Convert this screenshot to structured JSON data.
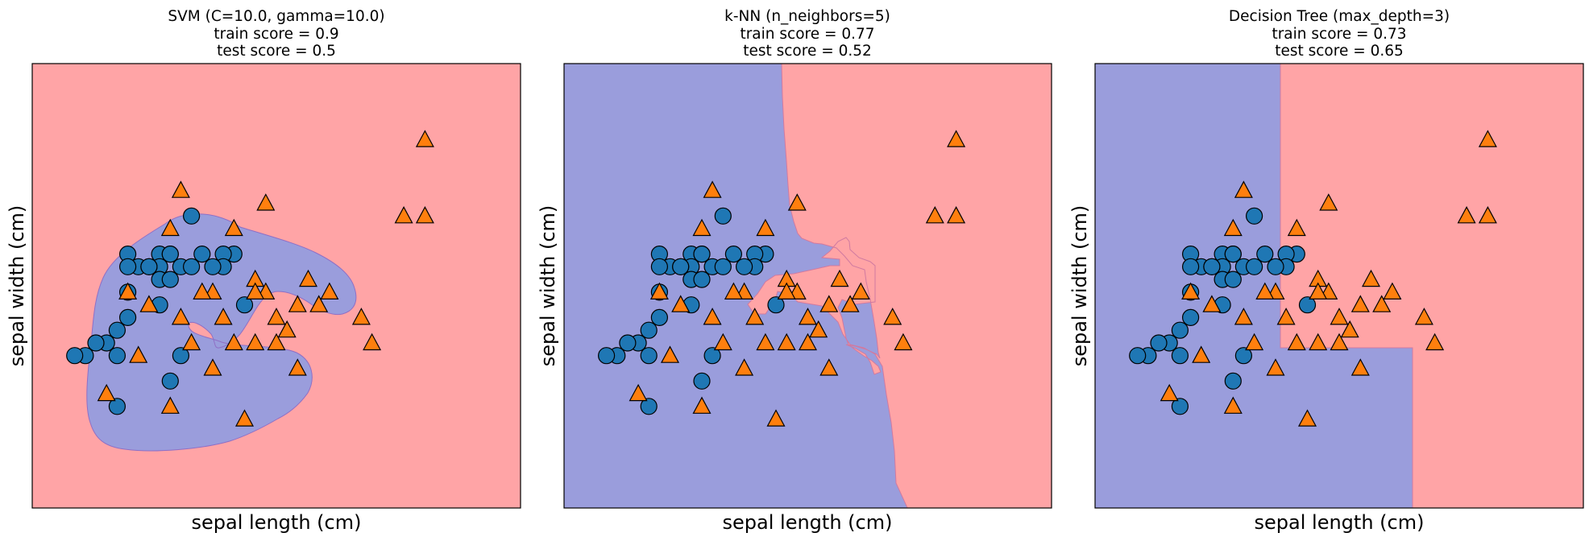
{
  "chart_data": [
    {
      "type": "scatter",
      "title": [
        "SVM (C=10.0, gamma=10.0)",
        "train score = 0.9",
        "test score = 0.5"
      ],
      "xlabel": "sepal length (cm)",
      "ylabel": "sepal width (cm)",
      "xlim": [
        4.2,
        8.8
      ],
      "ylim": [
        1.5,
        5.0
      ],
      "ticks": "hidden",
      "legend": "none",
      "regions": {
        "class0_color": "#9a9ddc",
        "class1_color": "#ffa4a6",
        "boundary": "class-0 (blue) blob around x 4.7–6.1, y 2.3–3.9 with a class-1 notch near x 5.5, y 3.0; rest class 1"
      },
      "series": [
        {
          "marker": "circle",
          "color": "#1f77b4",
          "x": [
            5.1,
            4.9,
            4.7,
            5.4,
            5.0,
            4.6,
            5.0,
            5.2,
            5.5,
            5.6,
            5.7,
            5.4,
            5.4,
            5.1,
            5.3,
            5.7,
            5.3,
            6.1,
            6.0,
            5.5,
            6.0,
            5.9,
            6.2,
            5.4,
            5.5,
            5.6,
            5.1,
            5.5,
            4.8,
            5.8,
            5.1,
            5.0
          ],
          "y": [
            3.5,
            2.8,
            2.7,
            3.5,
            2.9,
            2.7,
            2.3,
            3.4,
            3.5,
            3.4,
            3.8,
            3.4,
            3.3,
            3.4,
            3.4,
            3.4,
            3.4,
            3.5,
            3.5,
            2.5,
            3.4,
            3.4,
            3.1,
            3.1,
            3.3,
            2.7,
            3.2,
            3.5,
            2.8,
            3.5,
            3.0,
            2.7
          ]
        },
        {
          "marker": "triangle",
          "color": "#ff7f0e",
          "x": [
            7.0,
            6.4,
            6.9,
            5.5,
            6.5,
            5.7,
            6.3,
            4.9,
            6.6,
            5.2,
            6.7,
            5.6,
            6.2,
            5.9,
            6.1,
            7.4,
            7.9,
            6.3,
            6.4,
            6.0,
            6.8,
            5.8,
            7.7,
            6.3,
            5.6,
            7.9,
            6.7,
            6.5,
            5.9,
            7.3,
            6.1,
            5.5,
            5.1,
            5.3
          ],
          "y": [
            3.2,
            3.2,
            3.1,
            2.3,
            2.8,
            2.8,
            3.3,
            2.4,
            2.9,
            2.7,
            3.1,
            3.0,
            2.2,
            3.2,
            2.8,
            2.8,
            3.8,
            2.8,
            3.9,
            3.0,
            3.3,
            3.2,
            3.8,
            3.2,
            4.0,
            4.4,
            2.6,
            3.0,
            2.6,
            3.0,
            3.7,
            3.7,
            3.2,
            3.1
          ]
        }
      ]
    },
    {
      "type": "scatter",
      "title": [
        "k-NN (n_neighbors=5)",
        "train score = 0.77",
        "test score = 0.52"
      ],
      "xlabel": "sepal length (cm)",
      "ylabel": "sepal width (cm)",
      "xlim": [
        4.2,
        8.8
      ],
      "ylim": [
        1.5,
        5.0
      ],
      "ticks": "hidden",
      "legend": "none",
      "regions": {
        "class0_color": "#9a9ddc",
        "class1_color": "#ffa4a6",
        "boundary": "class 0 (blue) on the left with a jagged boundary near x 5.6–7.4; class 1 on the right"
      },
      "series": [
        {
          "marker": "circle",
          "color": "#1f77b4",
          "x": [
            5.1,
            4.9,
            4.7,
            5.4,
            5.0,
            4.6,
            5.0,
            5.2,
            5.5,
            5.6,
            5.7,
            5.4,
            5.4,
            5.1,
            5.3,
            5.7,
            5.3,
            6.1,
            6.0,
            5.5,
            6.0,
            5.9,
            6.2,
            5.4,
            5.5,
            5.6,
            5.1,
            5.5,
            4.8,
            5.8,
            5.1,
            5.0
          ],
          "y": [
            3.5,
            2.8,
            2.7,
            3.5,
            2.9,
            2.7,
            2.3,
            3.4,
            3.5,
            3.4,
            3.8,
            3.4,
            3.3,
            3.4,
            3.4,
            3.4,
            3.4,
            3.5,
            3.5,
            2.5,
            3.4,
            3.4,
            3.1,
            3.1,
            3.3,
            2.7,
            3.2,
            3.5,
            2.8,
            3.5,
            3.0,
            2.7
          ]
        },
        {
          "marker": "triangle",
          "color": "#ff7f0e",
          "x": [
            7.0,
            6.4,
            6.9,
            5.5,
            6.5,
            5.7,
            6.3,
            4.9,
            6.6,
            5.2,
            6.7,
            5.6,
            6.2,
            5.9,
            6.1,
            7.4,
            7.9,
            6.3,
            6.4,
            6.0,
            6.8,
            5.8,
            7.7,
            6.3,
            5.6,
            7.9,
            6.7,
            6.5,
            5.9,
            7.3,
            6.1,
            5.5,
            5.1,
            5.3
          ],
          "y": [
            3.2,
            3.2,
            3.1,
            2.3,
            2.8,
            2.8,
            3.3,
            2.4,
            2.9,
            2.7,
            3.1,
            3.0,
            2.2,
            3.2,
            2.8,
            2.8,
            3.8,
            2.8,
            3.9,
            3.0,
            3.3,
            3.2,
            3.8,
            3.2,
            4.0,
            4.4,
            2.6,
            3.0,
            2.6,
            3.0,
            3.7,
            3.7,
            3.2,
            3.1
          ]
        }
      ]
    },
    {
      "type": "scatter",
      "title": [
        "Decision Tree (max_depth=3)",
        "train score = 0.73",
        "test score = 0.65"
      ],
      "xlabel": "sepal length (cm)",
      "ylabel": "sepal width (cm)",
      "xlim": [
        4.2,
        8.8
      ],
      "ylim": [
        1.5,
        5.0
      ],
      "ticks": "hidden",
      "legend": "none",
      "regions": {
        "class0_color": "#9a9ddc",
        "class1_color": "#ffa4a6",
        "boundary": "class 0 for x < 5.95; class 0 also for 5.95 ≤ x < 7.2 when y < 2.95; otherwise class 1"
      },
      "series": [
        {
          "marker": "circle",
          "color": "#1f77b4",
          "x": [
            5.1,
            4.9,
            4.7,
            5.4,
            5.0,
            4.6,
            5.0,
            5.2,
            5.5,
            5.6,
            5.7,
            5.4,
            5.4,
            5.1,
            5.3,
            5.7,
            5.3,
            6.1,
            6.0,
            5.5,
            6.0,
            5.9,
            6.2,
            5.4,
            5.5,
            5.6,
            5.1,
            5.5,
            4.8,
            5.8,
            5.1,
            5.0
          ],
          "y": [
            3.5,
            2.8,
            2.7,
            3.5,
            2.9,
            2.7,
            2.3,
            3.4,
            3.5,
            3.4,
            3.8,
            3.4,
            3.3,
            3.4,
            3.4,
            3.4,
            3.4,
            3.5,
            3.5,
            2.5,
            3.4,
            3.4,
            3.1,
            3.1,
            3.3,
            2.7,
            3.2,
            3.5,
            2.8,
            3.5,
            3.0,
            2.7
          ]
        },
        {
          "marker": "triangle",
          "color": "#ff7f0e",
          "x": [
            7.0,
            6.4,
            6.9,
            5.5,
            6.5,
            5.7,
            6.3,
            4.9,
            6.6,
            5.2,
            6.7,
            5.6,
            6.2,
            5.9,
            6.1,
            7.4,
            7.9,
            6.3,
            6.4,
            6.0,
            6.8,
            5.8,
            7.7,
            6.3,
            5.6,
            7.9,
            6.7,
            6.5,
            5.9,
            7.3,
            6.1,
            5.5,
            5.1,
            5.3
          ],
          "y": [
            3.2,
            3.2,
            3.1,
            2.3,
            2.8,
            2.8,
            3.3,
            2.4,
            2.9,
            2.7,
            3.1,
            3.0,
            2.2,
            3.2,
            2.8,
            2.8,
            3.8,
            2.8,
            3.9,
            3.0,
            3.3,
            3.2,
            3.8,
            3.2,
            4.0,
            4.4,
            2.6,
            3.0,
            2.6,
            3.0,
            3.7,
            3.7,
            3.2,
            3.1
          ]
        }
      ]
    }
  ]
}
